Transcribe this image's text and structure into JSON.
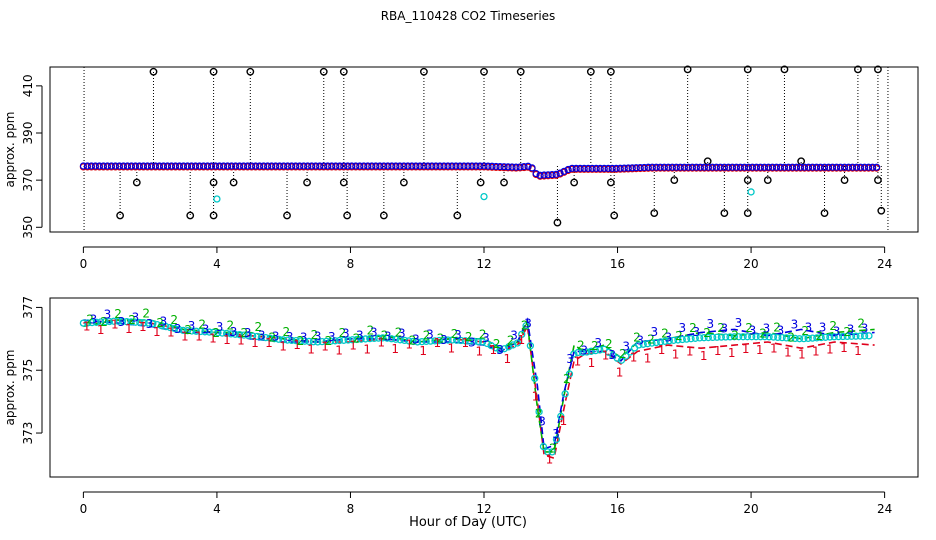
{
  "title": "RBA_110428  CO2 Timeseries",
  "chart_data": [
    {
      "type": "scatter",
      "panel": "top",
      "title": "",
      "xlabel": "Hour of Day (UTC)",
      "ylabel": "approx. ppm",
      "xlim": [
        -1,
        25
      ],
      "ylim": [
        348,
        418
      ],
      "xticks": [
        0,
        4,
        8,
        12,
        16,
        20,
        24
      ],
      "yticks": [
        350,
        370,
        390,
        410
      ],
      "baseline_blue": [
        [
          0,
          376
        ],
        [
          3,
          376
        ],
        [
          6,
          376
        ],
        [
          9,
          376
        ],
        [
          12,
          376
        ],
        [
          13,
          375.5
        ],
        [
          13.4,
          376
        ],
        [
          13.6,
          372
        ],
        [
          14.2,
          372.5
        ],
        [
          14.6,
          375
        ],
        [
          16,
          375
        ],
        [
          17,
          375.5
        ],
        [
          18,
          375.5
        ],
        [
          21,
          375.5
        ],
        [
          23.8,
          375.5
        ]
      ],
      "spikes_high": [
        [
          2.1,
          416
        ],
        [
          3.9,
          416
        ],
        [
          5.0,
          416
        ],
        [
          7.2,
          416
        ],
        [
          7.8,
          416
        ],
        [
          10.2,
          416
        ],
        [
          12.0,
          416
        ],
        [
          13.1,
          416
        ],
        [
          15.2,
          416
        ],
        [
          15.8,
          416
        ],
        [
          18.1,
          417
        ],
        [
          19.9,
          417
        ],
        [
          21.0,
          417
        ],
        [
          23.2,
          417
        ],
        [
          23.8,
          417
        ]
      ],
      "dips_low": [
        [
          1.1,
          355
        ],
        [
          1.6,
          369
        ],
        [
          3.2,
          355
        ],
        [
          3.9,
          355
        ],
        [
          3.9,
          369
        ],
        [
          4.5,
          369
        ],
        [
          6.1,
          355
        ],
        [
          6.7,
          369
        ],
        [
          7.8,
          369
        ],
        [
          7.9,
          355
        ],
        [
          9.0,
          355
        ],
        [
          9.6,
          369
        ],
        [
          11.2,
          355
        ],
        [
          11.9,
          369
        ],
        [
          12.6,
          369
        ],
        [
          14.2,
          352
        ],
        [
          14.7,
          369
        ],
        [
          15.8,
          369
        ],
        [
          15.9,
          355
        ],
        [
          17.1,
          356
        ],
        [
          17.7,
          370
        ],
        [
          18.7,
          378
        ],
        [
          19.2,
          356
        ],
        [
          19.9,
          370
        ],
        [
          19.9,
          356
        ],
        [
          20.5,
          370
        ],
        [
          21.5,
          378
        ],
        [
          22.2,
          356
        ],
        [
          22.8,
          370
        ],
        [
          23.8,
          370
        ],
        [
          23.9,
          357
        ]
      ],
      "cyan_points": [
        [
          4.0,
          362
        ],
        [
          12.0,
          363
        ],
        [
          20.0,
          365
        ]
      ]
    },
    {
      "type": "line",
      "panel": "bottom",
      "title": "",
      "xlabel": "Hour of Day (UTC)",
      "ylabel": "approx. ppm",
      "xlim": [
        -1,
        25
      ],
      "ylim": [
        371.6,
        377.3
      ],
      "xticks": [
        0,
        4,
        8,
        12,
        16,
        20,
        24
      ],
      "yticks": [
        373,
        375,
        377
      ],
      "series": [
        {
          "name": "1",
          "color": "#e0001b",
          "points": [
            [
              0,
              376.5
            ],
            [
              1,
              376.6
            ],
            [
              2,
              376.5
            ],
            [
              3,
              376.3
            ],
            [
              4,
              376.2
            ],
            [
              5,
              376.1
            ],
            [
              6,
              376.0
            ],
            [
              7,
              375.9
            ],
            [
              8,
              375.9
            ],
            [
              9,
              376.0
            ],
            [
              10,
              375.9
            ],
            [
              11,
              376.0
            ],
            [
              12,
              375.9
            ],
            [
              12.5,
              375.6
            ],
            [
              13.0,
              375.8
            ],
            [
              13.3,
              376.4
            ],
            [
              13.6,
              374.0
            ],
            [
              13.8,
              372.3
            ],
            [
              14.1,
              372.2
            ],
            [
              14.4,
              373.8
            ],
            [
              14.7,
              375.3
            ],
            [
              15.0,
              375.5
            ],
            [
              15.6,
              375.6
            ],
            [
              16.1,
              375.2
            ],
            [
              16.6,
              375.6
            ],
            [
              17.5,
              375.8
            ],
            [
              18.5,
              375.7
            ],
            [
              19.5,
              375.8
            ],
            [
              20.5,
              375.9
            ],
            [
              21.5,
              375.7
            ],
            [
              22.5,
              375.9
            ],
            [
              23.7,
              375.8
            ]
          ]
        },
        {
          "name": "2",
          "color": "#00b000",
          "points": [
            [
              0,
              376.4
            ],
            [
              1,
              376.6
            ],
            [
              2,
              376.6
            ],
            [
              3,
              376.3
            ],
            [
              4,
              376.2
            ],
            [
              5,
              376.2
            ],
            [
              6,
              376.0
            ],
            [
              7,
              375.9
            ],
            [
              8,
              376.0
            ],
            [
              9,
              376.1
            ],
            [
              10,
              375.9
            ],
            [
              11,
              376.0
            ],
            [
              12,
              376.0
            ],
            [
              12.5,
              375.7
            ],
            [
              13.0,
              375.9
            ],
            [
              13.3,
              376.5
            ],
            [
              13.6,
              373.8
            ],
            [
              13.8,
              372.4
            ],
            [
              14.1,
              372.4
            ],
            [
              14.4,
              374.2
            ],
            [
              14.7,
              375.8
            ],
            [
              15.0,
              375.6
            ],
            [
              15.6,
              375.8
            ],
            [
              16.1,
              375.4
            ],
            [
              16.6,
              375.9
            ],
            [
              17.5,
              376.0
            ],
            [
              18.5,
              376.2
            ],
            [
              19.5,
              376.1
            ],
            [
              20.5,
              376.2
            ],
            [
              21.5,
              376.0
            ],
            [
              22.5,
              376.2
            ],
            [
              23.7,
              376.3
            ]
          ]
        },
        {
          "name": "3",
          "color": "#0000e0",
          "points": [
            [
              0,
              376.6
            ],
            [
              1,
              376.5
            ],
            [
              2,
              376.4
            ],
            [
              3,
              376.2
            ],
            [
              4,
              376.2
            ],
            [
              5,
              376.0
            ],
            [
              6,
              375.9
            ],
            [
              7,
              375.9
            ],
            [
              8,
              376.0
            ],
            [
              9,
              376.0
            ],
            [
              10,
              375.9
            ],
            [
              11,
              375.9
            ],
            [
              12,
              375.8
            ],
            [
              12.5,
              375.6
            ],
            [
              13.0,
              375.9
            ],
            [
              13.3,
              376.6
            ],
            [
              13.6,
              374.5
            ],
            [
              13.8,
              372.5
            ],
            [
              14.1,
              372.6
            ],
            [
              14.4,
              374.3
            ],
            [
              14.7,
              375.6
            ],
            [
              15.0,
              375.6
            ],
            [
              15.6,
              375.6
            ],
            [
              16.1,
              375.3
            ],
            [
              16.6,
              375.9
            ],
            [
              17.5,
              376.0
            ],
            [
              18.5,
              376.2
            ],
            [
              19.5,
              376.3
            ],
            [
              20.5,
              376.1
            ],
            [
              21.5,
              376.3
            ],
            [
              22.5,
              376.1
            ],
            [
              23.7,
              376.2
            ]
          ]
        }
      ],
      "circles_color": "#00c8c8"
    }
  ]
}
